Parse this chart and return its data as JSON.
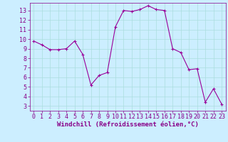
{
  "hours": [
    0,
    1,
    2,
    3,
    4,
    5,
    6,
    7,
    8,
    9,
    10,
    11,
    12,
    13,
    14,
    15,
    16,
    17,
    18,
    19,
    20,
    21,
    22,
    23
  ],
  "values": [
    9.8,
    9.4,
    8.9,
    8.9,
    9.0,
    9.8,
    8.4,
    5.2,
    6.2,
    6.5,
    11.3,
    13.0,
    12.9,
    13.1,
    13.5,
    13.1,
    13.0,
    9.0,
    8.6,
    6.8,
    6.9,
    3.4,
    4.8,
    3.2
  ],
  "line_color": "#990099",
  "marker": "+",
  "marker_size": 3,
  "marker_linewidth": 0.8,
  "bg_color": "#cceeff",
  "grid_color": "#aadddd",
  "xlim": [
    -0.5,
    23.5
  ],
  "ylim": [
    2.5,
    13.8
  ],
  "yticks": [
    3,
    4,
    5,
    6,
    7,
    8,
    9,
    10,
    11,
    12,
    13
  ],
  "xticks": [
    0,
    1,
    2,
    3,
    4,
    5,
    6,
    7,
    8,
    9,
    10,
    11,
    12,
    13,
    14,
    15,
    16,
    17,
    18,
    19,
    20,
    21,
    22,
    23
  ],
  "xlabel": "Windchill (Refroidissement éolien,°C)",
  "xlabel_fontsize": 6.5,
  "tick_fontsize": 6,
  "label_color": "#880088",
  "spine_color": "#880088",
  "linewidth": 0.8
}
